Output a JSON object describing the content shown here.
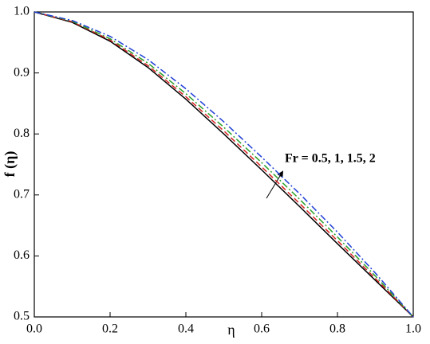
{
  "chart_data": {
    "type": "line",
    "x_label": "η",
    "y_label": "f (η)",
    "annotation": "Fr = 0.5, 1, 1.5, 2",
    "x": [
      0,
      0.1,
      0.2,
      0.3,
      0.4,
      0.5,
      0.6,
      0.7,
      0.8,
      0.9,
      1.0
    ],
    "series": [
      {
        "color": "#000000",
        "dash": "solid",
        "values": [
          1.0,
          0.983,
          0.952,
          0.909,
          0.857,
          0.8,
          0.741,
          0.681,
          0.62,
          0.56,
          0.5
        ]
      },
      {
        "color": "#d62020",
        "dash": "dashed",
        "values": [
          1.0,
          0.984,
          0.954,
          0.912,
          0.861,
          0.805,
          0.746,
          0.686,
          0.625,
          0.563,
          0.5
        ]
      },
      {
        "color": "#2aa02a",
        "dash": "dashdot",
        "values": [
          1.0,
          0.985,
          0.956,
          0.916,
          0.866,
          0.811,
          0.753,
          0.693,
          0.631,
          0.567,
          0.5
        ]
      },
      {
        "color": "#1f3fd6",
        "dash": "dashdot",
        "values": [
          1.0,
          0.986,
          0.96,
          0.922,
          0.874,
          0.82,
          0.762,
          0.702,
          0.639,
          0.572,
          0.5
        ]
      }
    ],
    "xlim": [
      0,
      1
    ],
    "xticks": [
      {
        "value": 0,
        "label": "0.0"
      },
      0.2,
      0.4,
      0.6,
      0.8,
      {
        "value": 1,
        "label": "1.0"
      }
    ],
    "ylim": [
      0.5,
      1
    ],
    "yticks": [
      0.5,
      0.6,
      0.7,
      0.8,
      0.9,
      {
        "value": 1,
        "label": "1.0"
      }
    ]
  }
}
